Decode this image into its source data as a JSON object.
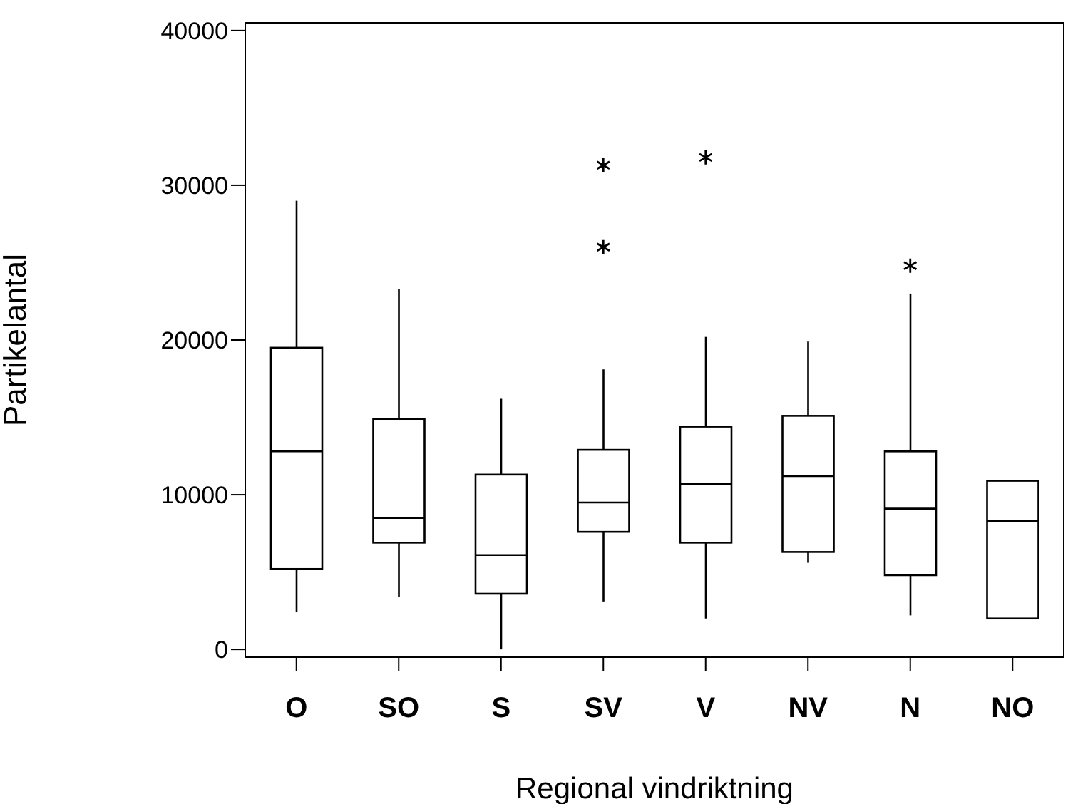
{
  "chart_data": {
    "type": "box",
    "xlabel": "Regional vindriktning",
    "ylabel": "Partikelantal",
    "categories": [
      "O",
      "SO",
      "S",
      "SV",
      "V",
      "NV",
      "N",
      "NO"
    ],
    "color": "#000000",
    "boxes": [
      {
        "low": 2400,
        "q1": 5200,
        "median": 12800,
        "q3": 19500,
        "high": 29000
      },
      {
        "low": 3400,
        "q1": 6900,
        "median": 8500,
        "q3": 14900,
        "high": 23300
      },
      {
        "low": 0,
        "q1": 3600,
        "median": 6100,
        "q3": 11300,
        "high": 16200
      },
      {
        "low": 3100,
        "q1": 7600,
        "median": 9500,
        "q3": 12900,
        "high": 18100,
        "outliers": [
          26000,
          31300
        ]
      },
      {
        "low": 2000,
        "q1": 6900,
        "median": 10700,
        "q3": 14400,
        "high": 20200,
        "outliers": [
          31800
        ]
      },
      {
        "low": 5600,
        "q1": 6300,
        "median": 11200,
        "q3": 15100,
        "high": 19900
      },
      {
        "low": 2200,
        "q1": 4800,
        "median": 9100,
        "q3": 12800,
        "high": 23000,
        "outliers": [
          24800
        ]
      },
      {
        "low": 2000,
        "q1": 2000,
        "median": 8300,
        "q3": 10900,
        "high": 10900
      }
    ],
    "ylim": [
      -500,
      40500
    ],
    "yticks": [
      0,
      10000,
      20000,
      30000,
      40000
    ]
  }
}
